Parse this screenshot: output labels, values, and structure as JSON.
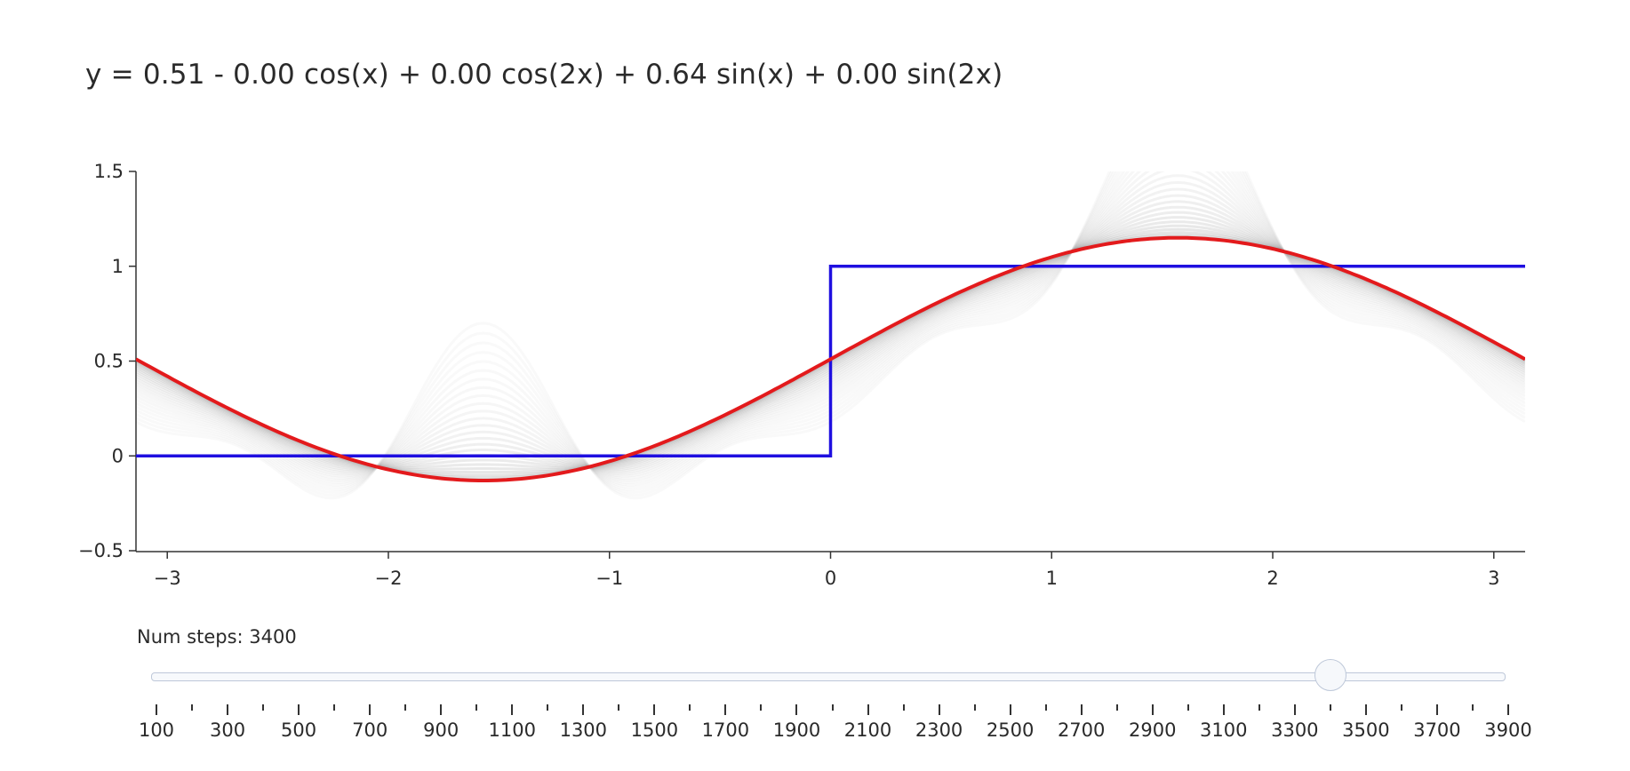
{
  "title": "y = 0.51 - 0.00 cos(x) + 0.00 cos(2x) + 0.64 sin(x) + 0.00 sin(2x)",
  "slider": {
    "label": "Num steps: 3400",
    "value": 3400,
    "min": 100,
    "max": 4000,
    "tick_labels": [
      "100",
      "300",
      "500",
      "700",
      "900",
      "1100",
      "1300",
      "1500",
      "1700",
      "1900",
      "2100",
      "2300",
      "2500",
      "2700",
      "2900",
      "3100",
      "3300",
      "3500",
      "3700",
      "3900"
    ]
  },
  "chart_data": {
    "type": "line",
    "xlim": [
      -3.14159,
      3.14159
    ],
    "ylim": [
      -0.5,
      1.5
    ],
    "x_ticks": [
      "−3",
      "−2",
      "−1",
      "0",
      "1",
      "2",
      "3"
    ],
    "x_tick_values": [
      -3,
      -2,
      -1,
      0,
      1,
      2,
      3
    ],
    "y_ticks": [
      "−0.5",
      "0",
      "0.5",
      "1",
      "1.5"
    ],
    "y_tick_values": [
      -0.5,
      0,
      0.5,
      1,
      1.5
    ],
    "grid": false,
    "target_step": {
      "color": "#1f0fe0",
      "x": [
        -3.14159,
        0,
        0,
        3.14159
      ],
      "y": [
        0,
        0,
        1,
        1
      ]
    },
    "fit": {
      "color": "#e31a1c",
      "a0": 0.51,
      "a1": 0.0,
      "a2": 0.0,
      "b1": 0.64,
      "b2": 0.0
    },
    "history_color": "#9e9e9e"
  }
}
